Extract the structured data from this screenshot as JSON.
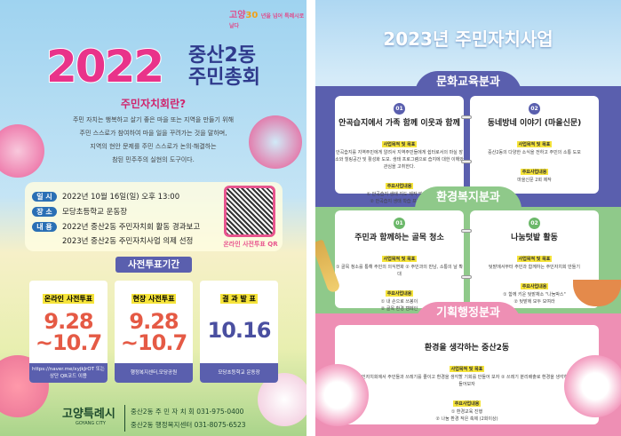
{
  "left_poster": {
    "logo": {
      "prefix": "고양",
      "number": "30",
      "suffix": "년을 넘어 특례시로 날다"
    },
    "year": "2022",
    "title_line1": "중산2동",
    "title_line2": "주민총회",
    "what_heading": "주민자치회란?",
    "description": [
      "주민 자치는 행복하고 살기 좋은 마을 또는 지역을 만들기 위해",
      "주민 스스로가 참여하여 마을 일을 꾸려가는 것을 말하며,",
      "지역의 현안 문제를 주민 스스로가 논의·해결하는",
      "참된 민주주의 실현의 도구이다."
    ],
    "info": [
      {
        "label": "일 시",
        "value": "2022년 10월 16일(일) 오후 13:00"
      },
      {
        "label": "장 소",
        "value": "모당초등학교 운동장"
      },
      {
        "label": "내 용",
        "value": "2022년 중산2동 주민자치회 활동 경과보고"
      },
      {
        "label": "",
        "value": "2023년 중산2동 주민자치사업 의제 선정"
      }
    ],
    "qr_label": "온라인 사전투표 QR",
    "vote_heading": "사전투표기간",
    "cards": [
      {
        "title": "온라인 사전투표",
        "line1": "9.28",
        "line2": "~10.7",
        "footer": "https://naver.me/xyjkJrOT 또는 상단 QR코드 이용",
        "color": "#e55a45"
      },
      {
        "title": "현장 사전투표",
        "line1": "9.28",
        "line2": "~10.7",
        "footer": "행정복지센터,모당공원",
        "color": "#e55a45"
      },
      {
        "title": "결 과 발 표",
        "line1": "10.16",
        "line2": "",
        "footer": "모당초등학교 운동장",
        "color": "#4a4fa0"
      }
    ],
    "city": "고양특례시",
    "city_en": "GOYANG CITY",
    "contacts": [
      "중산2동 주 민 자 치 회 031-975-0400",
      "중산2동 행정복지센터 031-8075-6523"
    ]
  },
  "right_poster": {
    "title": "2023년 주민자치사업",
    "sections": [
      {
        "name": "문화교육분과",
        "color": "#5a5fae",
        "items": [
          {
            "no": "01",
            "title": "안곡습지에서 가족 함께 이웃과 함께",
            "goal_label": "사업목적 및 목표",
            "goal": "안곡습지를 지역주민에게 알려서 지역주민들에게 쉼터로서의 마실 장소와 힐링공간 및 활성화 도모. 생태 프로그램으로 습지에 대한 이해와 관심을 고취한다.",
            "main_label": "주요사업내용",
            "main": [
              "① 안곡습지 생태 지도 제작 및 배포",
              "② 안곡습지 생태 학습 프로그램"
            ]
          },
          {
            "no": "02",
            "title": "동네방네 이야기 (마을신문)",
            "goal_label": "사업목적 및 목표",
            "goal": "중산2동의 다양한 소식을 전하고 주민의 소통 도모",
            "main_label": "주요사업내용",
            "main": [
              "마을신문 2회 제작"
            ]
          }
        ]
      },
      {
        "name": "환경복지분과",
        "color": "#8fc98a",
        "items": [
          {
            "no": "01",
            "title": "주민과 함께하는 골목 청소",
            "goal_label": "사업목적 및 목표",
            "goal": "① 골목 청소를 통해 주민의 의식변화 ② 주민과의 만남, 소통의 날 확대",
            "main_label": "주요사업내용",
            "main": [
              "① 내 손으로 쓰봉이",
              "② 골목 환경 캠페인"
            ]
          },
          {
            "no": "02",
            "title": "나눔텃밭 활동",
            "goal_label": "사업목적 및 목표",
            "goal": "텃밭에서부터 주민과 함께하는 주민자치회 만들기",
            "main_label": "주요사업내용",
            "main": [
              "① 함께 키운 텃밭채소 \"나눔박스\"",
              "② 텃밭에 모두 모여라"
            ]
          }
        ]
      },
      {
        "name": "기획행정분과",
        "color": "#ee8fb4",
        "items": [
          {
            "no": "",
            "title": "환경을 생각하는 중산2동",
            "goal_label": "사업목적 및 목표",
            "goal": "① 중산2동 주민자치회에서 주민들과 쓰레기를 줄이고 환경을 생각할 기회를 만들어 보자 ② 쓰레기 분리배출로 환경을 생각하는 중산2동을 만들어보자",
            "main_label": "주요사업내용",
            "main": [
              "① 환경교육 진행",
              "② 나눔 환경 작은 축제 (2회이상)"
            ]
          }
        ]
      }
    ]
  }
}
